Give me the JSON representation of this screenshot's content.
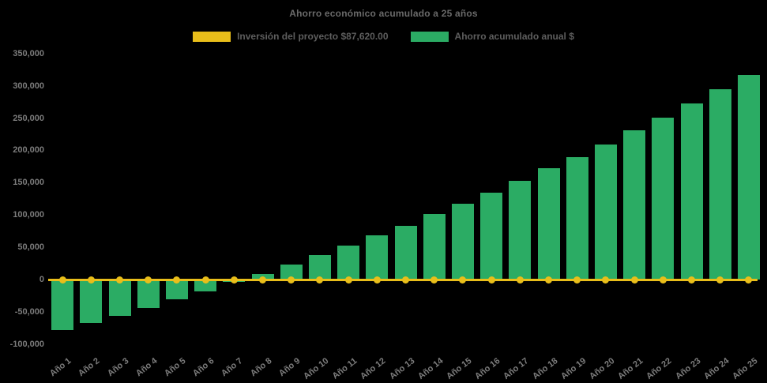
{
  "title": "Ahorro económico acumulado a 25 años",
  "colors": {
    "background": "#000000",
    "bar_green": "#2BAC64",
    "line_yellow": "#E9BE1A",
    "title_text": "#6A6A6A",
    "axis_text": "#7C7C7C",
    "legend_text": "#5E5E5E"
  },
  "legend": {
    "items": [
      {
        "label": "Inversión del proyecto $87,620.00",
        "color": "#E9BE1A"
      },
      {
        "label": "Ahorro acumulado anual $",
        "color": "#2BAC64"
      }
    ]
  },
  "chart_data": {
    "type": "bar",
    "title": "Ahorro económico acumulado a 25 años",
    "categories": [
      "Año 1",
      "Año 2",
      "Año 3",
      "Año 4",
      "Año 5",
      "Año 6",
      "Año 7",
      "Año 8",
      "Año 9",
      "Año 10",
      "Año 11",
      "Año 12",
      "Año 13",
      "Año 14",
      "Año 15",
      "Año 16",
      "Año 17",
      "Año 18",
      "Año 19",
      "Año 20",
      "Año 21",
      "Año 22",
      "Año 23",
      "Año 24",
      "Año 25"
    ],
    "series": [
      {
        "name": "Ahorro acumulado anual $",
        "type": "bar",
        "color": "#2BAC64",
        "values": [
          -78000,
          -67000,
          -56000,
          -43500,
          -31000,
          -18500,
          -4000,
          9000,
          23500,
          37500,
          53000,
          68500,
          83000,
          101000,
          118000,
          135000,
          152500,
          172000,
          189500,
          209500,
          231000,
          251000,
          272500,
          294500,
          317000
        ]
      },
      {
        "name": "Inversión del proyecto $87,620.00",
        "type": "line",
        "color": "#E9BE1A",
        "marker": "circle",
        "values": [
          0,
          0,
          0,
          0,
          0,
          0,
          0,
          0,
          0,
          0,
          0,
          0,
          0,
          0,
          0,
          0,
          0,
          0,
          0,
          0,
          0,
          0,
          0,
          0,
          0
        ]
      }
    ],
    "xlabel": "",
    "ylabel": "",
    "ylim": [
      -100000,
      350000
    ],
    "ytick_step": 50000,
    "ytick_labels": [
      "350,000",
      "300,000",
      "250,000",
      "200,000",
      "150,000",
      "100,000",
      "50,000",
      "0",
      "-50,000",
      "-100,000"
    ],
    "grid": false,
    "legend_position": "top-center",
    "background": "#000000"
  }
}
